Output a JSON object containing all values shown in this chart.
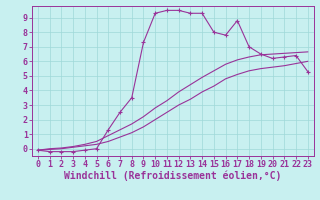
{
  "xlabel": "Windchill (Refroidissement éolien,°C)",
  "background_color": "#c8f0f0",
  "line_color": "#993399",
  "xlim": [
    -0.5,
    23.5
  ],
  "ylim": [
    -0.5,
    9.8
  ],
  "xticks": [
    0,
    1,
    2,
    3,
    4,
    5,
    6,
    7,
    8,
    9,
    10,
    11,
    12,
    13,
    14,
    15,
    16,
    17,
    18,
    19,
    20,
    21,
    22,
    23
  ],
  "yticks": [
    0,
    1,
    2,
    3,
    4,
    5,
    6,
    7,
    8,
    9
  ],
  "line1_x": [
    0,
    1,
    2,
    3,
    4,
    5,
    6,
    7,
    8,
    9,
    10,
    11,
    12,
    13,
    14,
    15,
    16,
    17,
    18,
    19,
    20,
    21,
    22,
    23
  ],
  "line1_y": [
    -0.1,
    -0.2,
    -0.2,
    -0.2,
    -0.1,
    0.0,
    1.3,
    2.5,
    3.5,
    7.3,
    9.3,
    9.5,
    9.5,
    9.3,
    9.3,
    8.0,
    7.8,
    8.8,
    7.0,
    6.5,
    6.2,
    6.3,
    6.4,
    5.3
  ],
  "line2_x": [
    0,
    1,
    2,
    3,
    4,
    5,
    6,
    7,
    8,
    9,
    10,
    11,
    12,
    13,
    14,
    15,
    16,
    17,
    18,
    19,
    20,
    21,
    22,
    23
  ],
  "line2_y": [
    -0.1,
    -0.05,
    0.0,
    0.1,
    0.2,
    0.3,
    0.5,
    0.8,
    1.1,
    1.5,
    2.0,
    2.5,
    3.0,
    3.4,
    3.9,
    4.3,
    4.8,
    5.1,
    5.35,
    5.5,
    5.6,
    5.7,
    5.85,
    6.0
  ],
  "line3_x": [
    0,
    1,
    2,
    3,
    4,
    5,
    6,
    7,
    8,
    9,
    10,
    11,
    12,
    13,
    14,
    15,
    16,
    17,
    18,
    19,
    20,
    21,
    22,
    23
  ],
  "line3_y": [
    -0.1,
    0.0,
    0.05,
    0.15,
    0.3,
    0.5,
    0.9,
    1.3,
    1.7,
    2.2,
    2.8,
    3.3,
    3.9,
    4.4,
    4.9,
    5.35,
    5.8,
    6.1,
    6.3,
    6.45,
    6.5,
    6.55,
    6.6,
    6.65
  ],
  "grid_color": "#9fd8d8",
  "tick_labelsize": 6.0,
  "xlabel_fontsize": 7.0
}
